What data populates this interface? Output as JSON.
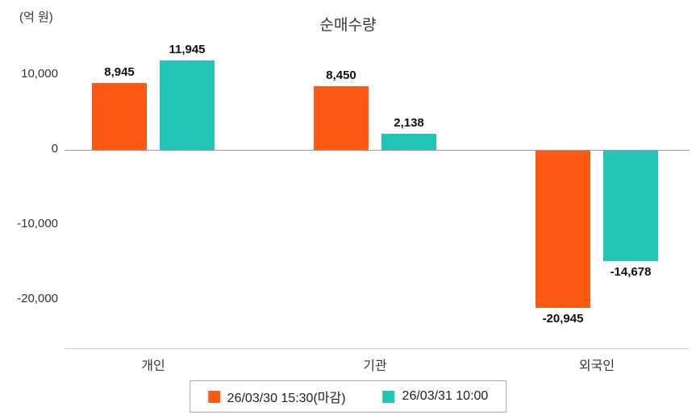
{
  "chart_data": {
    "type": "bar",
    "title": "순매수량",
    "ylabel": "(억 원)",
    "categories": [
      "개인",
      "기관",
      "외국인"
    ],
    "series": [
      {
        "name": "26/03/30 15:30(마감)",
        "color": "#FF5A14",
        "values": [
          8945,
          8450,
          -20945
        ]
      },
      {
        "name": "26/03/31 10:00",
        "color": "#21C5B5",
        "values": [
          11945,
          2138,
          -14678
        ]
      }
    ],
    "value_labels": [
      [
        "8,945",
        "8,450",
        "-20,945"
      ],
      [
        "11,945",
        "2,138",
        "-14,678"
      ]
    ],
    "yticks": [
      {
        "value": 10000,
        "label": "10,000"
      },
      {
        "value": 0,
        "label": "0"
      },
      {
        "value": -10000,
        "label": "-10,000"
      },
      {
        "value": -20000,
        "label": "-20,000"
      }
    ],
    "ylim": [
      -26400,
      13500
    ],
    "grid": false,
    "legend_position": "bottom"
  }
}
